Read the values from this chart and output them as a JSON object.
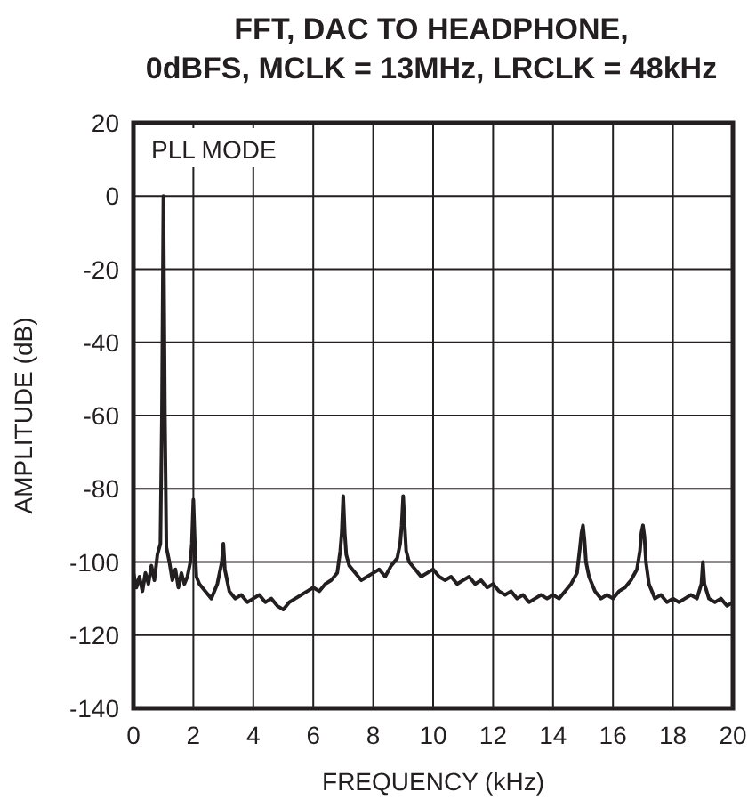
{
  "chart_data": {
    "type": "line",
    "title": "FFT, DAC TO HEADPHONE,\n0dBFS, MCLK = 13MHz, LRCLK = 48kHz",
    "xlabel": "FREQUENCY (kHz)",
    "ylabel": "AMPLITUDE (dB)",
    "annotations": [
      "PLL MODE"
    ],
    "xlim": [
      0,
      20
    ],
    "xticks": [
      0,
      2,
      4,
      6,
      8,
      10,
      12,
      14,
      16,
      18,
      20
    ],
    "ylim": [
      -140,
      20
    ],
    "yticks": [
      -140,
      -120,
      -100,
      -80,
      -60,
      -40,
      -20,
      0,
      20
    ],
    "grid": true,
    "marker": "none",
    "line_style": "solid",
    "series": [
      {
        "color": "#231f20",
        "x": [
          0,
          0.1,
          0.2,
          0.3,
          0.4,
          0.5,
          0.6,
          0.7,
          0.8,
          0.9,
          0.95,
          1,
          1.05,
          1.1,
          1.2,
          1.3,
          1.4,
          1.5,
          1.6,
          1.7,
          1.8,
          1.9,
          1.95,
          2,
          2.05,
          2.1,
          2.2,
          2.4,
          2.6,
          2.8,
          2.95,
          3,
          3.05,
          3.2,
          3.4,
          3.6,
          3.8,
          4,
          4.2,
          4.4,
          4.6,
          4.8,
          5,
          5.2,
          5.4,
          5.6,
          5.8,
          6,
          6.2,
          6.4,
          6.6,
          6.8,
          6.9,
          6.95,
          7,
          7.05,
          7.1,
          7.2,
          7.4,
          7.6,
          7.8,
          8,
          8.2,
          8.4,
          8.6,
          8.8,
          8.9,
          8.95,
          9,
          9.05,
          9.1,
          9.2,
          9.4,
          9.6,
          9.8,
          10,
          10.2,
          10.4,
          10.6,
          10.8,
          11,
          11.2,
          11.4,
          11.6,
          11.8,
          12,
          12.2,
          12.4,
          12.6,
          12.8,
          13,
          13.2,
          13.4,
          13.6,
          13.8,
          14,
          14.2,
          14.4,
          14.6,
          14.8,
          14.9,
          14.95,
          15,
          15.05,
          15.1,
          15.2,
          15.4,
          15.6,
          15.8,
          16,
          16.2,
          16.4,
          16.6,
          16.8,
          16.9,
          16.95,
          17,
          17.05,
          17.1,
          17.2,
          17.4,
          17.6,
          17.8,
          18,
          18.2,
          18.4,
          18.6,
          18.8,
          18.95,
          19,
          19.05,
          19.2,
          19.4,
          19.6,
          19.8,
          20
        ],
        "values": [
          -103,
          -107,
          -104,
          -108,
          -103,
          -106,
          -101,
          -105,
          -98,
          -95,
          -60,
          0,
          -60,
          -96,
          -100,
          -105,
          -102,
          -107,
          -103,
          -106,
          -104,
          -100,
          -95,
          -83,
          -95,
          -104,
          -106,
          -108,
          -110,
          -106,
          -100,
          -95,
          -102,
          -108,
          -110,
          -109,
          -111,
          -110,
          -109,
          -111,
          -110,
          -112,
          -113,
          -111,
          -110,
          -109,
          -108,
          -107,
          -108,
          -106,
          -105,
          -103,
          -97,
          -92,
          -82,
          -92,
          -98,
          -101,
          -103,
          -105,
          -104,
          -103,
          -102,
          -104,
          -101,
          -99,
          -95,
          -90,
          -82,
          -90,
          -97,
          -100,
          -102,
          -104,
          -103,
          -102,
          -104,
          -105,
          -104,
          -106,
          -105,
          -104,
          -106,
          -105,
          -107,
          -106,
          -108,
          -109,
          -108,
          -110,
          -109,
          -111,
          -110,
          -109,
          -110,
          -109,
          -110,
          -108,
          -106,
          -103,
          -96,
          -92,
          -90,
          -94,
          -100,
          -104,
          -108,
          -110,
          -109,
          -110,
          -108,
          -107,
          -105,
          -102,
          -97,
          -92,
          -90,
          -93,
          -100,
          -106,
          -110,
          -109,
          -111,
          -110,
          -111,
          -110,
          -109,
          -110,
          -106,
          -100,
          -106,
          -110,
          -111,
          -110,
          -112,
          -111
        ]
      }
    ]
  }
}
